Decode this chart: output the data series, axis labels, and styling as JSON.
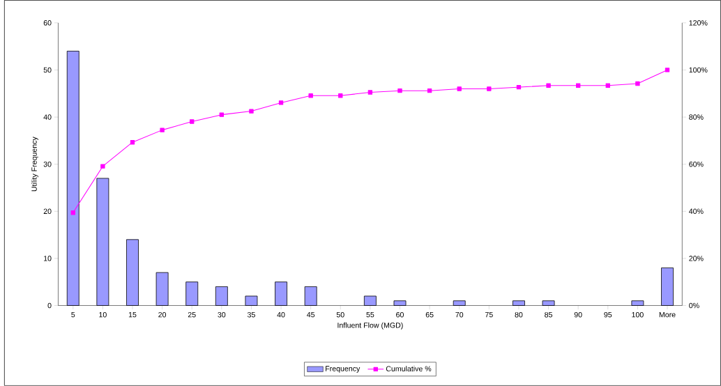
{
  "chart_data": {
    "type": "bar",
    "xlabel": "Influent Flow (MGD)",
    "ylabel": "Utility Frequency",
    "categories": [
      "5",
      "10",
      "15",
      "20",
      "25",
      "30",
      "35",
      "40",
      "45",
      "50",
      "55",
      "60",
      "65",
      "70",
      "75",
      "80",
      "85",
      "90",
      "95",
      "100",
      "More"
    ],
    "series": [
      {
        "name": "Frequency",
        "color": "#9999ff",
        "values": [
          54,
          27,
          14,
          7,
          5,
          4,
          2,
          5,
          4,
          0,
          2,
          1,
          0,
          1,
          0,
          1,
          1,
          0,
          0,
          1,
          8
        ]
      },
      {
        "name": "Cumulative %",
        "type": "line",
        "axis": "y2",
        "color": "#ff00ff",
        "marker": "square",
        "values": [
          39.4,
          59.1,
          69.3,
          74.5,
          78.1,
          81.0,
          82.5,
          86.1,
          89.1,
          89.1,
          90.5,
          91.2,
          91.2,
          92.0,
          92.0,
          92.7,
          93.4,
          93.4,
          93.4,
          94.2,
          100
        ]
      }
    ],
    "ylim": [
      0,
      60
    ],
    "yticks": [
      0,
      10,
      20,
      30,
      40,
      50,
      60
    ],
    "y2lim": [
      0,
      120
    ],
    "y2ticks": [
      {
        "value": 0,
        "label": "0%"
      },
      {
        "value": 20,
        "label": "20%"
      },
      {
        "value": 40,
        "label": "40%"
      },
      {
        "value": 60,
        "label": "60%"
      },
      {
        "value": 80,
        "label": "80%"
      },
      {
        "value": 100,
        "label": "100%"
      },
      {
        "value": 120,
        "label": "120%"
      }
    ],
    "legend": "bottom",
    "grid": false
  }
}
